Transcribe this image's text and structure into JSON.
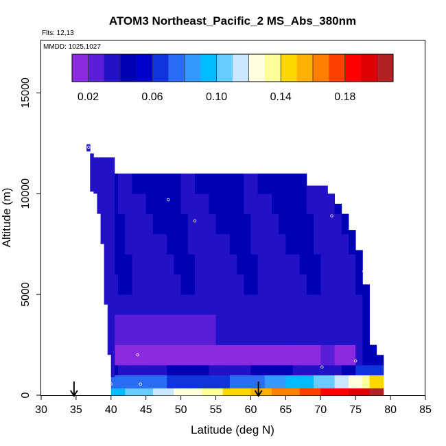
{
  "chart_data": {
    "type": "heatmap",
    "title": "ATOM3 Northeast_Pacific_2 MS_Abs_380nm",
    "flights_label": "Flts: 12,13",
    "dates_label": "MMDD: 1025,1027",
    "xlabel": "Latitude (deg N)",
    "ylabel": "Altitude (m)",
    "xlim": [
      30,
      85
    ],
    "ylim": [
      0,
      17600
    ],
    "x_ticks": [
      "30",
      "35",
      "40",
      "45",
      "50",
      "55",
      "60",
      "65",
      "70",
      "75",
      "80",
      "85"
    ],
    "y_ticks": [
      "0",
      "5000",
      "10000",
      "15000"
    ],
    "colorbar": {
      "range": [
        0.01,
        0.21
      ],
      "tick_labels": [
        "0.02",
        "0.06",
        "0.10",
        "0.14",
        "0.18"
      ],
      "tick_values": [
        0.02,
        0.06,
        0.1,
        0.14,
        0.18
      ],
      "colors": [
        "#8a2be2",
        "#5a1ed6",
        "#2211c6",
        "#0000b4",
        "#0000cc",
        "#1133dd",
        "#2a6cf2",
        "#3399ff",
        "#00bbff",
        "#66ccff",
        "#cce8ff",
        "#ffffe0",
        "#ffff99",
        "#ffd700",
        "#ffb000",
        "#ff8000",
        "#ff4000",
        "#ff0000",
        "#dd0000",
        "#b22222"
      ]
    },
    "profile_columns": [
      {
        "lat": 36.5,
        "alt_bottom": 12100,
        "alt_top": 12450,
        "value": 0.035
      },
      {
        "lat": 37.0,
        "alt_bottom": 10100,
        "alt_top": 12000,
        "value": 0.036
      },
      {
        "lat": 37.5,
        "alt_bottom": 10000,
        "alt_top": 11800,
        "value": 0.037
      },
      {
        "lat": 38.0,
        "alt_bottom": 9000,
        "alt_top": 11800,
        "value": 0.038
      },
      {
        "lat": 38.5,
        "alt_bottom": 7500,
        "alt_top": 11800,
        "value": 0.038
      },
      {
        "lat": 39.0,
        "alt_bottom": 4500,
        "alt_top": 11800,
        "value": 0.036
      },
      {
        "lat": 39.5,
        "alt_bottom": 2000,
        "alt_top": 11800,
        "value": 0.034
      },
      {
        "lat": 40.0,
        "alt_bottom": 900,
        "alt_top": 11800,
        "value": 0.032
      }
    ],
    "field_grid": {
      "lat_min": 40,
      "lat_max": 78,
      "lat_step": 1,
      "alt_levels": [
        500,
        1000,
        1500,
        2000,
        2500,
        3000,
        3500,
        4000,
        4500,
        5000,
        6000,
        7000,
        8000,
        9000,
        10000,
        11000
      ],
      "top_altitude_by_lat": [
        11800,
        11800,
        11800,
        11800,
        11800,
        11800,
        11800,
        11800,
        11800,
        11800,
        11800,
        11800,
        11800,
        11800,
        11800,
        11800,
        11800,
        11800,
        11800,
        11800,
        11800,
        11800,
        11800,
        11800,
        11800,
        11000,
        11000,
        11000,
        10400,
        10400,
        10400,
        10000,
        9500,
        9000,
        8200,
        7200,
        5500,
        2500,
        2000
      ]
    },
    "measurement_points": [
      {
        "lat": 36.8,
        "alt": 12300
      },
      {
        "lat": 48.2,
        "alt": 9700
      },
      {
        "lat": 52.0,
        "alt": 8650
      },
      {
        "lat": 67.3,
        "alt": 11400
      },
      {
        "lat": 72.5,
        "alt": 10100
      },
      {
        "lat": 71.6,
        "alt": 8900
      },
      {
        "lat": 76.2,
        "alt": 6150
      },
      {
        "lat": 43.8,
        "alt": 2000
      },
      {
        "lat": 70.2,
        "alt": 1400
      },
      {
        "lat": 75.0,
        "alt": 1700
      },
      {
        "lat": 40.0,
        "alt": 550
      },
      {
        "lat": 44.2,
        "alt": 550
      }
    ],
    "arrows_lat": [
      34.7,
      61.1
    ]
  }
}
